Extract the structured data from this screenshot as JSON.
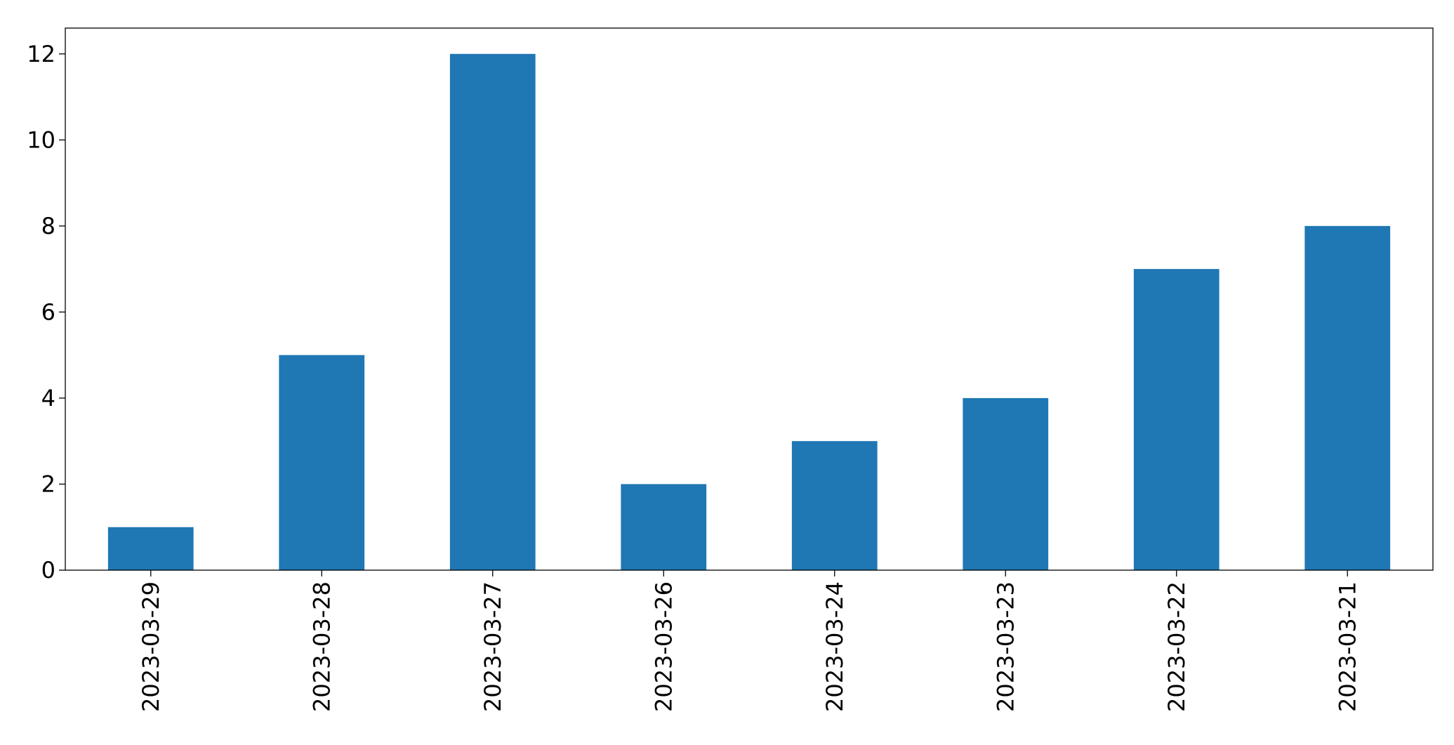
{
  "chart_data": {
    "type": "bar",
    "categories": [
      "2023-03-29",
      "2023-03-28",
      "2023-03-27",
      "2023-03-26",
      "2023-03-24",
      "2023-03-23",
      "2023-03-22",
      "2023-03-21"
    ],
    "values": [
      1,
      5,
      12,
      2,
      3,
      4,
      7,
      8
    ],
    "ylim": [
      0,
      12.6
    ],
    "yticks": [
      0,
      2,
      4,
      6,
      8,
      10,
      12
    ],
    "grid": false,
    "bar_color": "#1f77b4"
  }
}
